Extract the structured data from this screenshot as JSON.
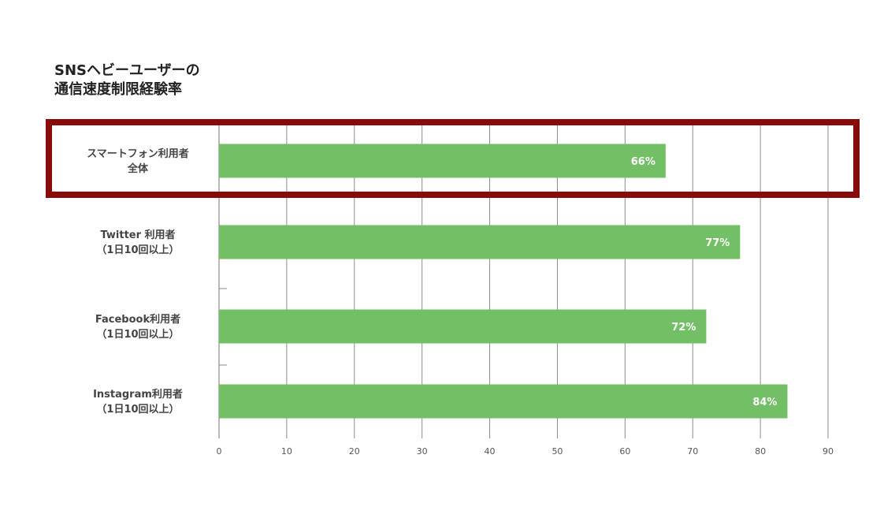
{
  "title": {
    "line1": "SNSヘビーユーザーの",
    "line2": "通信速度制限経験率"
  },
  "colors": {
    "bar": "#73bf66",
    "highlight_frame": "#8a0a0a",
    "grid": "#8c8c8c"
  },
  "chart_data": {
    "type": "bar",
    "orientation": "horizontal",
    "title": "SNSヘビーユーザーの通信速度制限経験率",
    "categories": [
      [
        "スマートフォン利用者",
        "全体"
      ],
      [
        "Twitter 利用者",
        "（1日10回以上）"
      ],
      [
        "Facebook利用者",
        "（1日10回以上）"
      ],
      [
        "Instagram利用者",
        "（1日10回以上）"
      ]
    ],
    "values": [
      66,
      77,
      72,
      84
    ],
    "value_labels": [
      "66%",
      "77%",
      "72%",
      "84%"
    ],
    "xlim": [
      0,
      90
    ],
    "xticks": [
      0,
      10,
      20,
      30,
      40,
      50,
      60,
      70,
      80,
      90
    ],
    "xlabel": "",
    "ylabel": "",
    "grid": true,
    "highlighted_category": 0
  }
}
